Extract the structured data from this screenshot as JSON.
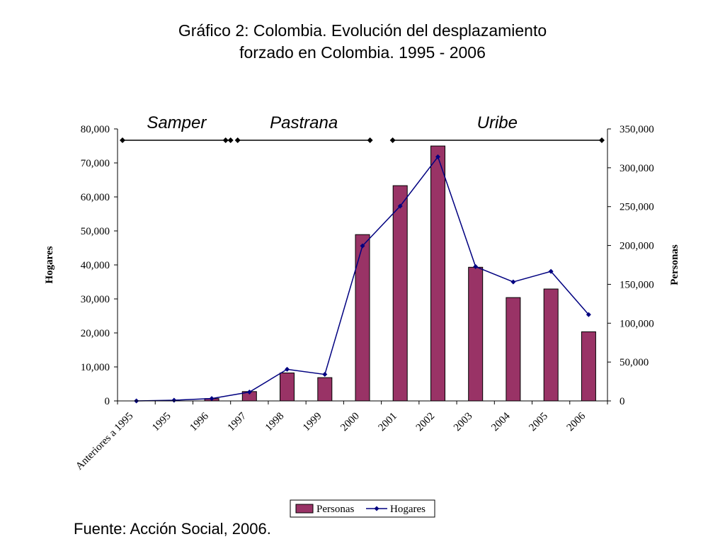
{
  "title_line1": "Gráfico 2: Colombia. Evolución del desplazamiento",
  "title_line2": "forzado en Colombia. 1995 - 2006",
  "source": "Fuente: Acción Social, 2006.",
  "periods": [
    {
      "name": "Samper",
      "from": 0,
      "to": 3
    },
    {
      "name": "Pastrana",
      "from": 3,
      "to": 7
    },
    {
      "name": "Uribe",
      "from": 7,
      "to": 13
    }
  ],
  "chart_data": {
    "type": "bar",
    "categories": [
      "Anteriores a 1995",
      "1995",
      "1996",
      "1997",
      "1998",
      "1999",
      "2000",
      "2001",
      "2002",
      "2003",
      "2004",
      "2005",
      "2006"
    ],
    "ylabel": "Hogares",
    "y2label": "Personas",
    "ylim": [
      0,
      80000
    ],
    "y2lim": [
      0,
      350000
    ],
    "yticks": [
      "0",
      "10,000",
      "20,000",
      "30,000",
      "40,000",
      "50,000",
      "60,000",
      "70,000",
      "80,000"
    ],
    "y2ticks": [
      "0",
      "50,000",
      "100,000",
      "150,000",
      "200,000",
      "250,000",
      "300,000",
      "350,000"
    ],
    "series": [
      {
        "name": "Personas",
        "type": "bar",
        "axis": "right",
        "color": "#993366",
        "values": [
          0,
          0,
          3000,
          12000,
          36000,
          30000,
          214000,
          277000,
          328000,
          172000,
          133000,
          144000,
          89000
        ]
      },
      {
        "name": "Hogares",
        "type": "line",
        "axis": "left",
        "color": "#000080",
        "values": [
          0,
          200,
          700,
          2600,
          9300,
          7800,
          45600,
          57300,
          71800,
          39500,
          35000,
          38100,
          25400
        ]
      }
    ],
    "legend": "bottom"
  }
}
